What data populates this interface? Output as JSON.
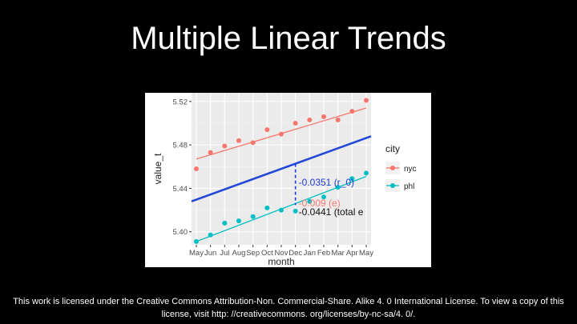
{
  "slide": {
    "title": "Multiple Linear Trends",
    "license": "This work is licensed under the Creative Commons Attribution-Non. Commercial-Share. Alike 4. 0 International License. To view a copy of this license, visit http: //creativecommons. org/licenses/by-nc-sa/4. 0/."
  },
  "chart_data": {
    "type": "scatter",
    "xlabel": "month",
    "ylabel": "value_t",
    "categories": [
      "May",
      "Jun",
      "Jul",
      "Aug",
      "Sep",
      "Oct",
      "Nov",
      "Dec",
      "Jan",
      "Feb",
      "Mar",
      "Apr",
      "May"
    ],
    "yticks": [
      "5.40",
      "5.44",
      "5.48",
      "5.52"
    ],
    "ylim": [
      5.388,
      5.528
    ],
    "grid": true,
    "legend": {
      "title": "city",
      "position": "right"
    },
    "series": [
      {
        "name": "nyc",
        "color": "#F8766D",
        "values": [
          5.458,
          5.473,
          5.479,
          5.484,
          5.482,
          5.494,
          5.49,
          5.5,
          5.503,
          5.506,
          5.503,
          5.511,
          5.521
        ],
        "trend": [
          5.467,
          5.514
        ]
      },
      {
        "name": "phl",
        "color": "#00BFC4",
        "values": [
          5.391,
          5.397,
          5.408,
          5.41,
          5.414,
          5.422,
          5.42,
          5.419,
          5.428,
          5.432,
          5.441,
          5.449,
          5.454
        ],
        "trend": [
          5.391,
          5.451
        ]
      }
    ],
    "overall_trend": {
      "color": "#2547D8",
      "values": [
        5.428,
        5.488
      ]
    },
    "annotations": [
      {
        "text": "-0.0351 (r_0)",
        "color": "#1F3ACF"
      },
      {
        "text": "-0.009 (e)",
        "color": "#F8766D"
      },
      {
        "text": "-0.0441 (total e",
        "color": "#111111"
      }
    ]
  }
}
